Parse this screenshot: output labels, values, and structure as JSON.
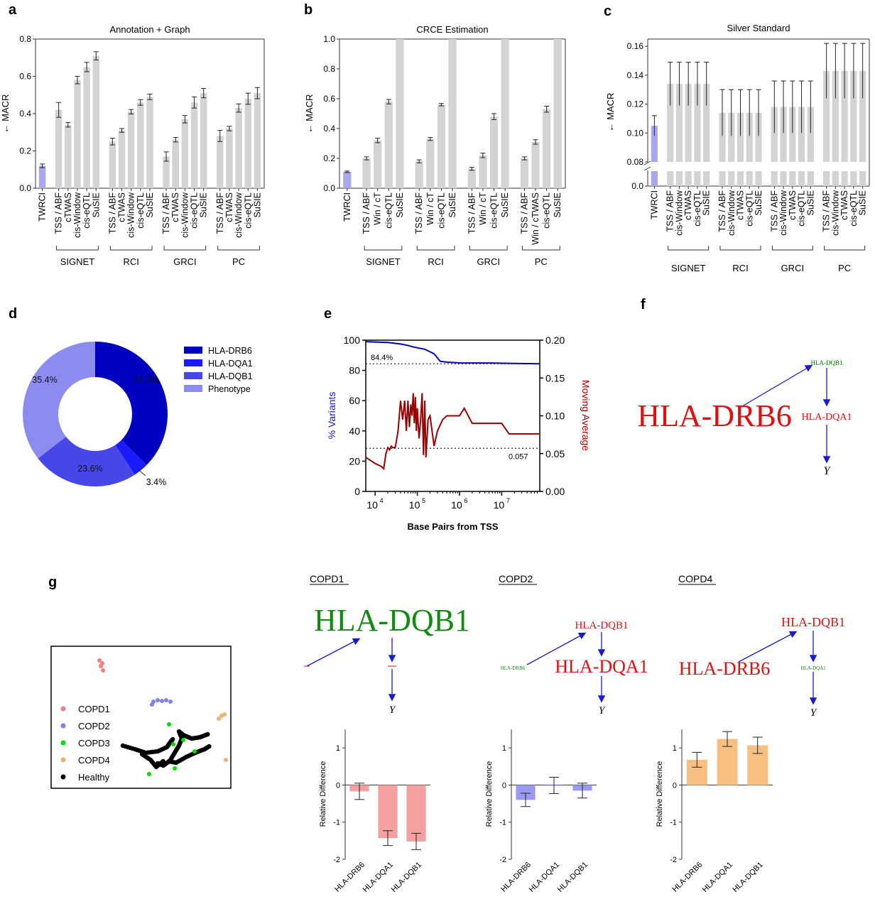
{
  "chart_data": [
    {
      "panel": "a",
      "type": "bar",
      "title": "Annotation + Graph",
      "ylabel": "← MACR",
      "ylim": [
        0,
        0.8
      ],
      "yticks": [
        "0.0",
        "0.2",
        "0.4",
        "0.6",
        "0.8"
      ],
      "categories": [
        "TWRCI",
        "TSS / ABF",
        "cTWAS",
        "cis-Window",
        "cis-eQTL",
        "SuSIE",
        "TSS / ABF",
        "cTWAS",
        "cis-Window",
        "cis-eQTL",
        "SuSIE",
        "TSS / ABF",
        "cTWAS",
        "cis-Window",
        "cis-eQTL",
        "SuSIE",
        "TSS / ABF",
        "cTWAS",
        "cis-Window",
        "cis-eQTL",
        "SuSIE"
      ],
      "values": [
        0.12,
        0.42,
        0.34,
        0.58,
        0.65,
        0.71,
        0.25,
        0.31,
        0.41,
        0.46,
        0.49,
        0.17,
        0.26,
        0.37,
        0.46,
        0.51,
        0.28,
        0.32,
        0.43,
        0.48,
        0.51
      ],
      "errors": [
        0.01,
        0.04,
        0.012,
        0.02,
        0.025,
        0.022,
        0.018,
        0.01,
        0.012,
        0.015,
        0.015,
        0.025,
        0.012,
        0.02,
        0.03,
        0.025,
        0.03,
        0.012,
        0.022,
        0.03,
        0.03
      ],
      "groups": [
        {
          "name": "SIGNET",
          "start": 1,
          "end": 5
        },
        {
          "name": "RCI",
          "start": 6,
          "end": 10
        },
        {
          "name": "GRCI",
          "start": 11,
          "end": 15
        },
        {
          "name": "PC",
          "start": 16,
          "end": 20
        }
      ]
    },
    {
      "panel": "b",
      "type": "bar",
      "title": "CRCE Estimation",
      "ylabel": "← MACR",
      "ylim": [
        0,
        1.0
      ],
      "yticks": [
        "0.0",
        "0.2",
        "0.4",
        "0.6",
        "0.8",
        "1.0"
      ],
      "categories": [
        "TWRCI",
        "TSS / ABF",
        "Win / cT",
        "cis-eQTL",
        "SuSIE",
        "TSS / ABF",
        "Win / cT",
        "cis-eQTL",
        "SuSIE",
        "TSS / ABF",
        "Win / cT",
        "cis-eQTL",
        "SuSIE",
        "TSS / ABF",
        "Win / cTWAS",
        "cis-eQTL",
        "SuSIE"
      ],
      "values": [
        0.11,
        0.2,
        0.32,
        0.58,
        1.0,
        0.18,
        0.33,
        0.56,
        1.0,
        0.13,
        0.22,
        0.48,
        1.0,
        0.2,
        0.31,
        0.53,
        1.0
      ],
      "errors": [
        0.005,
        0.01,
        0.015,
        0.015,
        0,
        0.01,
        0.01,
        0.008,
        0,
        0.01,
        0.015,
        0.02,
        0,
        0.01,
        0.015,
        0.02,
        0
      ],
      "groups": [
        {
          "name": "SIGNET",
          "start": 1,
          "end": 4
        },
        {
          "name": "RCI",
          "start": 5,
          "end": 8
        },
        {
          "name": "GRCI",
          "start": 9,
          "end": 12
        },
        {
          "name": "PC",
          "start": 13,
          "end": 16
        }
      ]
    },
    {
      "panel": "c",
      "type": "bar",
      "title": "Silver Standard",
      "ylabel": "← MACR",
      "ylim": [
        0.08,
        0.16
      ],
      "axis_break": true,
      "yticks": [
        "0.08",
        "0.10",
        "0.12",
        "0.14",
        "0.16"
      ],
      "ytick_low": "0.0",
      "categories": [
        "TWRCI",
        "TSS / ABF",
        "cis-Window",
        "cTWAS",
        "cis-eQTL",
        "SuSIE",
        "TSS / ABF",
        "cis-Window",
        "cTWAS",
        "cis-eQTL",
        "SuSIE",
        "TSS / ABF",
        "cis-Window",
        "cTWAS",
        "cis-eQTL",
        "SuSIE",
        "TSS / ABF",
        "cis-Window",
        "cTWAS",
        "cis-eQTL",
        "SuSIE"
      ],
      "values": [
        0.105,
        0.134,
        0.134,
        0.134,
        0.134,
        0.134,
        0.114,
        0.114,
        0.114,
        0.114,
        0.114,
        0.118,
        0.118,
        0.118,
        0.118,
        0.118,
        0.143,
        0.143,
        0.143,
        0.143,
        0.143
      ],
      "errors": [
        0.007,
        0.015,
        0.015,
        0.015,
        0.015,
        0.015,
        0.016,
        0.016,
        0.016,
        0.016,
        0.016,
        0.018,
        0.018,
        0.018,
        0.018,
        0.018,
        0.019,
        0.019,
        0.019,
        0.019,
        0.019
      ],
      "groups": [
        {
          "name": "SIGNET",
          "start": 1,
          "end": 5
        },
        {
          "name": "RCI",
          "start": 6,
          "end": 10
        },
        {
          "name": "GRCI",
          "start": 11,
          "end": 15
        },
        {
          "name": "PC",
          "start": 16,
          "end": 20
        }
      ]
    },
    {
      "panel": "d",
      "type": "pie",
      "categories": [
        "HLA-DRB6",
        "HLA-DQA1",
        "HLA-DQB1",
        "Phenotype"
      ],
      "values": [
        37.3,
        3.4,
        23.6,
        35.4
      ],
      "labels": [
        "37.3%",
        "3.4%",
        "23.6%",
        "35.4%"
      ],
      "colors": [
        "#0000c0",
        "#1a1aff",
        "#4747e8",
        "#8c8cf0"
      ]
    },
    {
      "panel": "e",
      "type": "line",
      "xlabel": "Base Pairs from TSS",
      "ylabel_left": "% Variants",
      "ylabel_right": "Moving Average",
      "x_scale": "log",
      "xlim": [
        6000,
        80000000
      ],
      "xticks": [
        "10",
        "10",
        "10",
        "10"
      ],
      "xtick_exps": [
        "4",
        "5",
        "6",
        "7"
      ],
      "ylim_left": [
        0,
        100
      ],
      "yticks_left": [
        "0",
        "20",
        "40",
        "60",
        "80",
        "100"
      ],
      "ylim_right": [
        0,
        0.2
      ],
      "yticks_right": [
        "0.00",
        "0.05",
        "0.10",
        "0.15",
        "0.20"
      ],
      "annotations": [
        "84.4%",
        "0.057"
      ],
      "series": [
        {
          "color": "#0000c0",
          "x": [
            6000,
            20000,
            40000,
            60000,
            80000,
            150000,
            250000,
            350000,
            500000,
            1000000,
            5000000,
            20000000,
            80000000
          ],
          "y": [
            99,
            98.5,
            97.5,
            96.5,
            95.5,
            94,
            91,
            86,
            85.5,
            85,
            84.9,
            84.6,
            84.4
          ]
        },
        {
          "color": "#990000",
          "x": [
            6000,
            10000,
            14000,
            16000,
            18000,
            20000,
            22000,
            24000,
            26000,
            30000,
            35000,
            40000,
            45000,
            50000,
            55000,
            60000,
            65000,
            70000,
            75000,
            80000,
            85000,
            90000,
            95000,
            100000,
            110000,
            120000,
            130000,
            140000,
            150000,
            160000,
            180000,
            200000,
            250000,
            300000,
            400000,
            500000,
            1000000,
            1300000,
            2000000,
            10000000,
            15000000,
            80000000
          ],
          "y": [
            0.045,
            0.037,
            0.033,
            0.03,
            0.05,
            0.058,
            0.055,
            0.06,
            0.058,
            0.058,
            0.08,
            0.12,
            0.095,
            0.12,
            0.08,
            0.12,
            0.085,
            0.115,
            0.1,
            0.13,
            0.09,
            0.125,
            0.08,
            0.11,
            0.07,
            0.095,
            0.13,
            0.048,
            0.12,
            0.045,
            0.095,
            0.1,
            0.06,
            0.08,
            0.095,
            0.1,
            0.1,
            0.11,
            0.09,
            0.09,
            0.076,
            0.076
          ]
        }
      ]
    },
    {
      "panel": "g",
      "type": "scatter",
      "legend": [
        "COPD1",
        "COPD2",
        "COPD3",
        "COPD4",
        "Healthy"
      ],
      "colors": [
        "#f08080",
        "#8080f0",
        "#00dd00",
        "#f0b070",
        "#000000"
      ]
    },
    {
      "panel": "g-COPD1",
      "type": "bar",
      "ylabel": "Relative Difference",
      "ylim": [
        -2,
        1.5
      ],
      "yticks": [
        "1",
        "0",
        "-1",
        "-2"
      ],
      "categories": [
        "HLA-DRB6",
        "HLA-DQA1",
        "HLA-DQB1"
      ],
      "values": [
        -0.17,
        -1.43,
        -1.52
      ],
      "errors": [
        0.22,
        0.2,
        0.22
      ],
      "color": "#f4a0a0"
    },
    {
      "panel": "g-COPD2",
      "type": "bar",
      "ylabel": "Relative Difference",
      "ylim": [
        -2,
        1.5
      ],
      "yticks": [
        "1",
        "0",
        "-1",
        "-2"
      ],
      "categories": [
        "HLA-DRB6",
        "HLA-DQA1",
        "HLA-DQB1"
      ],
      "values": [
        -0.4,
        -0.01,
        -0.15
      ],
      "errors": [
        0.18,
        0.22,
        0.2
      ],
      "color": "#9a9af0"
    },
    {
      "panel": "g-COPD4",
      "type": "bar",
      "ylabel": "Relative Difference",
      "ylim": [
        -2,
        1.5
      ],
      "yticks": [
        "1",
        "0",
        "-1",
        "-2"
      ],
      "categories": [
        "HLA-DRB6",
        "HLA-DQA1",
        "HLA-DQB1"
      ],
      "values": [
        0.68,
        1.24,
        1.07
      ],
      "errors": [
        0.2,
        0.2,
        0.22
      ],
      "color": "#f8c080"
    }
  ],
  "panel_letters": [
    "a",
    "b",
    "c",
    "d",
    "e",
    "f",
    "g"
  ],
  "graphs": {
    "f": {
      "hub": "HLA-DQB1",
      "mid": "HLA-DQA1",
      "src": "HLA-DRB6",
      "y": "Y"
    },
    "copd1": {
      "title": "COPD1",
      "hub": "HLA-DQB1",
      "y": "Y"
    },
    "copd2": {
      "title": "COPD2",
      "hub": "HLA-DQB1",
      "mid": "HLA-DQA1",
      "src": "HLA-DRB6",
      "y": "Y"
    },
    "copd4": {
      "title": "COPD4",
      "hub": "HLA-DQB1",
      "mid": "HLA-DQA1",
      "src": "HLA-DRB6",
      "y": "Y"
    }
  }
}
